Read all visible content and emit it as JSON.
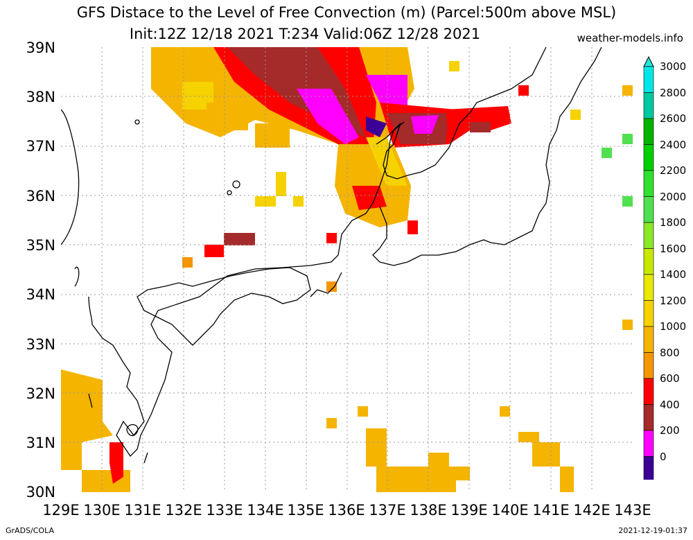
{
  "title_line1": "GFS Distace to the Level of Free Convection (m) (Parcel:500m above MSL)",
  "title_line2": "Init:12Z 12/18 2021 T:234 Valid:06Z 12/28 2021",
  "site": "weather-models.info",
  "credit": "GrADS/COLA",
  "timestamp": "2021-12-19-01:37",
  "lat_labels": [
    "39N",
    "38N",
    "37N",
    "36N",
    "35N",
    "34N",
    "33N",
    "32N",
    "31N",
    "30N"
  ],
  "lon_labels": [
    "129E",
    "130E",
    "131E",
    "132E",
    "133E",
    "134E",
    "135E",
    "136E",
    "137E",
    "138E",
    "139E",
    "140E",
    "141E",
    "142E",
    "143E"
  ],
  "colorbar": {
    "labels": [
      "3000",
      "2800",
      "2600",
      "2400",
      "2200",
      "2000",
      "1800",
      "1600",
      "1400",
      "1200",
      "1000",
      "800",
      "600",
      "400",
      "200",
      "0"
    ],
    "colors": [
      "#00e6e6",
      "#00c8a0",
      "#00b400",
      "#00d000",
      "#30e030",
      "#50e050",
      "#88e828",
      "#c8e800",
      "#e8e800",
      "#f5d200",
      "#f5b400",
      "#f59600",
      "#ff0000",
      "#a52a2a",
      "#ff00ff",
      "#3c0096"
    ],
    "over_color": "#20e8d8",
    "under_color": "#3c0096"
  }
}
